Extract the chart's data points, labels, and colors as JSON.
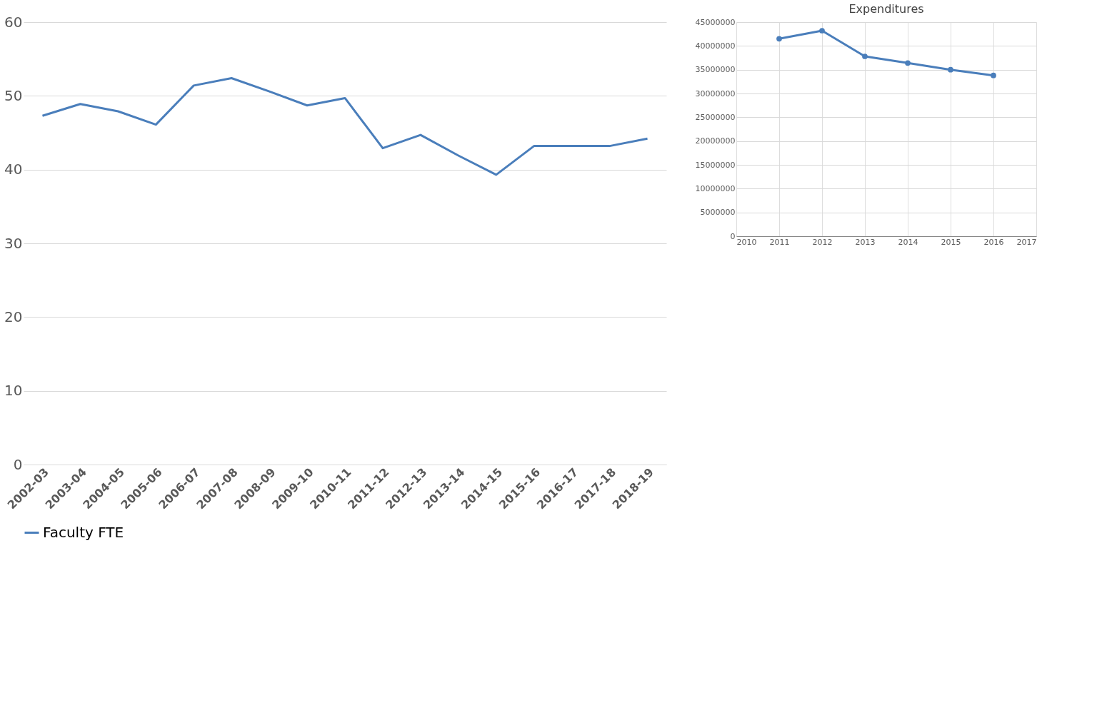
{
  "chart_data": [
    {
      "type": "line",
      "categories": [
        "2002-03",
        "2003-04",
        "2004-05",
        "2005-06",
        "2006-07",
        "2007-08",
        "2008-09",
        "2009-10",
        "2010-11",
        "2011-12",
        "2012-13",
        "2013-14",
        "2014-15",
        "2015-16",
        "2016-17",
        "2017-18",
        "2018-19"
      ],
      "series": [
        {
          "name": "Faculty FTE",
          "color": "#4a7ebb",
          "values": [
            47.3,
            48.9,
            47.9,
            46.1,
            51.4,
            52.4,
            50.6,
            48.7,
            49.7,
            42.9,
            44.7,
            41.9,
            39.3,
            43.2,
            43.2,
            43.2,
            44.2
          ]
        }
      ],
      "ylim": [
        0,
        60
      ],
      "yticks": [
        0,
        10,
        20,
        30,
        40,
        50,
        60
      ],
      "grid": "y",
      "legend": "bottom"
    },
    {
      "type": "line",
      "title": "Expenditures",
      "x": [
        2011,
        2012,
        2013,
        2014,
        2015,
        2016
      ],
      "series": [
        {
          "color": "#4a7ebb",
          "values": [
            41500000,
            43200000,
            37800000,
            36400000,
            35000000,
            33800000
          ]
        }
      ],
      "xlim": [
        2010,
        2017
      ],
      "xticks": [
        2010,
        2011,
        2012,
        2013,
        2014,
        2015,
        2016,
        2017
      ],
      "ylim": [
        0,
        45000000
      ],
      "yticks": [
        0,
        5000000,
        10000000,
        15000000,
        20000000,
        25000000,
        30000000,
        35000000,
        40000000,
        45000000
      ],
      "grid": true,
      "marker": "circle"
    }
  ]
}
